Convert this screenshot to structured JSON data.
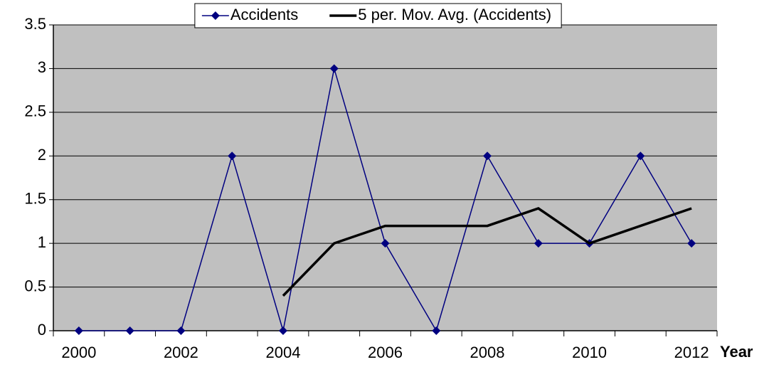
{
  "chart_data": {
    "type": "line",
    "categories": [
      "2000",
      null,
      "2002",
      null,
      "2004",
      null,
      "2006",
      null,
      "2008",
      null,
      "2010",
      null,
      "2012"
    ],
    "x_label": "Year",
    "series": [
      {
        "name": "Accidents",
        "color": "#000080",
        "marker": "diamond",
        "values": [
          0,
          0,
          0,
          2,
          0,
          3,
          1,
          0,
          2,
          1,
          1,
          2,
          1
        ]
      },
      {
        "name": "5 per. Mov. Avg. (Accidents)",
        "color": "#000000",
        "marker": "none",
        "values": [
          null,
          null,
          null,
          null,
          0.4,
          1.0,
          1.2,
          1.2,
          1.2,
          1.4,
          1.0,
          1.2,
          1.4
        ]
      }
    ],
    "ylim": [
      0,
      3.5
    ],
    "yticks": [
      0,
      0.5,
      1,
      1.5,
      2,
      2.5,
      3,
      3.5
    ],
    "grid": true,
    "legend": "top",
    "plot_background": "#c0c0c0"
  }
}
